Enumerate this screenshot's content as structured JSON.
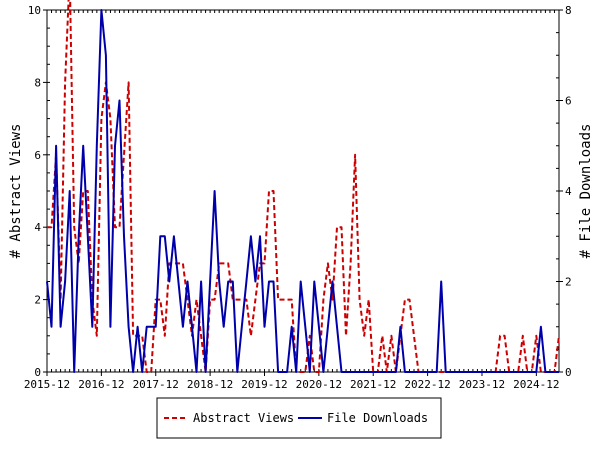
{
  "chart_data": {
    "type": "line",
    "ylabel": "# Abstract Views",
    "y2label": "# File Downloads",
    "ylim": [
      0,
      10
    ],
    "y2lim": [
      0,
      8
    ],
    "yticks": [
      "0",
      "2",
      "4",
      "6",
      "8",
      "10"
    ],
    "y2ticks": [
      "0",
      "2",
      "4",
      "6",
      "8"
    ],
    "xlim": [
      0,
      113
    ],
    "xtick_labels": [
      "2015-12",
      "2016-12",
      "2017-12",
      "2018-12",
      "2019-12",
      "2020-12",
      "2021-12",
      "2022-12",
      "2023-12",
      "2024-12"
    ],
    "xtick_positions": [
      0,
      12,
      24,
      36,
      48,
      60,
      72,
      84,
      96,
      108
    ],
    "legend_placement": "bottom-center",
    "series": [
      {
        "name": "Abstract Views",
        "axis": "left",
        "color": "#cc0000",
        "dash": "dashed",
        "values": [
          4,
          4,
          6,
          2,
          8,
          11,
          4,
          3,
          5,
          5,
          2,
          1,
          7,
          8,
          7,
          4,
          4,
          6,
          8,
          1,
          1,
          1,
          0,
          0,
          2,
          2,
          1,
          3,
          3,
          3,
          3,
          2,
          1,
          2,
          1,
          0,
          2,
          2,
          3,
          3,
          3,
          2,
          2,
          2,
          2,
          1,
          2,
          3,
          3,
          5,
          5,
          2,
          2,
          2,
          2,
          0,
          0,
          0,
          1,
          0,
          0,
          2,
          3,
          2,
          4,
          4,
          1,
          3,
          6,
          2,
          1,
          2,
          0,
          0,
          1,
          0,
          1,
          0,
          1,
          2,
          2,
          1,
          0,
          0,
          0,
          0,
          0,
          0,
          0,
          0,
          0,
          0,
          0,
          0,
          0,
          0,
          0,
          0,
          0,
          0,
          1,
          1,
          0,
          0,
          0,
          1,
          0,
          0,
          1,
          0,
          0,
          0,
          0,
          1
        ]
      },
      {
        "name": "File Downloads",
        "axis": "right",
        "color": "#0000aa",
        "dash": "solid",
        "values": [
          2,
          1,
          5,
          1,
          2,
          4,
          0,
          3,
          5,
          3,
          1,
          5,
          8,
          7,
          1,
          5,
          6,
          3,
          1,
          0,
          1,
          0,
          1,
          1,
          1,
          3,
          3,
          2,
          3,
          2,
          1,
          2,
          1,
          0,
          2,
          0,
          2,
          4,
          2,
          1,
          2,
          2,
          0,
          1,
          2,
          3,
          2,
          3,
          1,
          2,
          2,
          0,
          0,
          0,
          1,
          0,
          2,
          1,
          0,
          2,
          1,
          0,
          1,
          2,
          1,
          0,
          0,
          0,
          0,
          0,
          0,
          0,
          0,
          0,
          0,
          0,
          0,
          0,
          1,
          0,
          0,
          0,
          0,
          0,
          0,
          0,
          0,
          2,
          0,
          0,
          0,
          0,
          0,
          0,
          0,
          0,
          0,
          0,
          0,
          0,
          0,
          0,
          0,
          0,
          0,
          0,
          0,
          0,
          0,
          1,
          0,
          0,
          0,
          0
        ]
      }
    ]
  }
}
